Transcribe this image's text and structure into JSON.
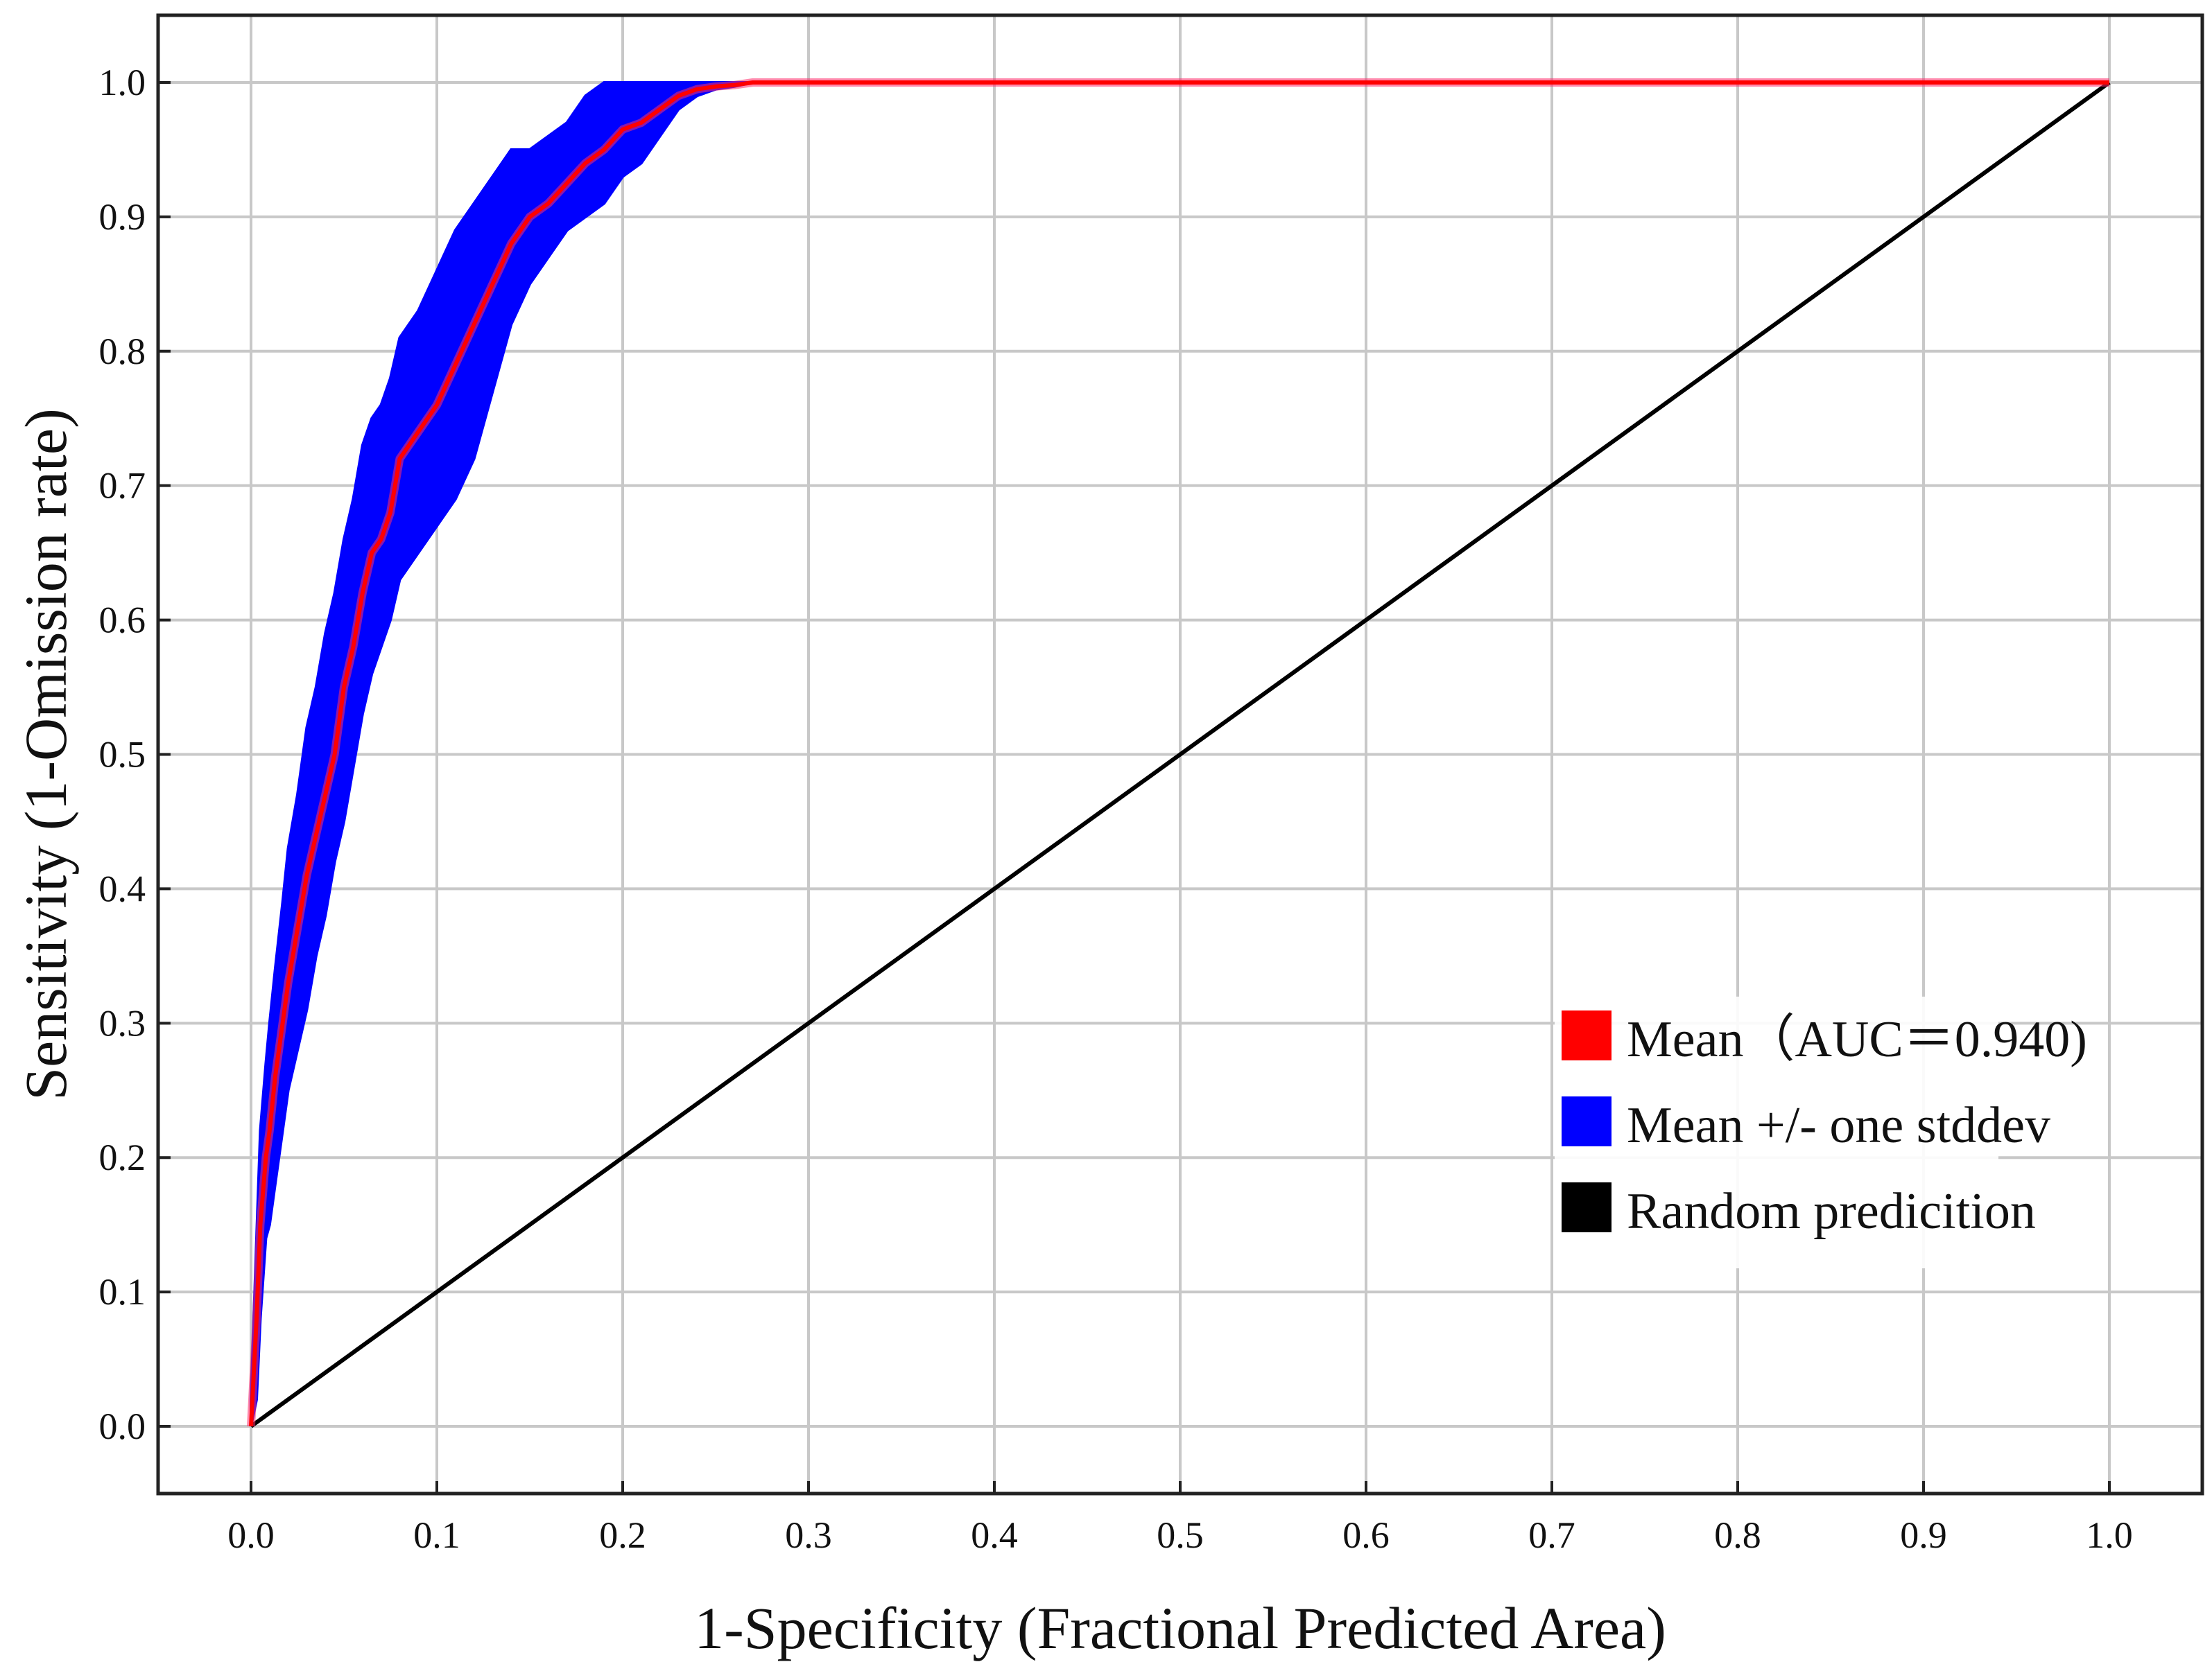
{
  "chart_data": {
    "type": "line",
    "title": "",
    "xlabel": "1-Specificity (Fractional Predicted Area)",
    "ylabel": "Sensitivity (1-Omission rate)",
    "xlim": [
      -0.05,
      1.05
    ],
    "ylim": [
      -0.05,
      1.05
    ],
    "xticks": [
      "0.0",
      "0.1",
      "0.2",
      "0.3",
      "0.4",
      "0.5",
      "0.6",
      "0.7",
      "0.8",
      "0.9",
      "1.0"
    ],
    "yticks": [
      "0.0",
      "0.1",
      "0.2",
      "0.3",
      "0.4",
      "0.5",
      "0.6",
      "0.7",
      "0.8",
      "0.9",
      "1.0"
    ],
    "grid": true,
    "legend_position": "lower-right",
    "colors": {
      "mean": "#ff0000",
      "band": "#0000ff",
      "random": "#000000",
      "grid": "#c8c8c8"
    },
    "series": [
      {
        "name": "Mean（AUC＝0.940)",
        "kind": "line",
        "x": [
          0.0,
          0.003,
          0.005,
          0.008,
          0.01,
          0.013,
          0.017,
          0.02,
          0.025,
          0.03,
          0.035,
          0.04,
          0.045,
          0.05,
          0.055,
          0.06,
          0.065,
          0.07,
          0.075,
          0.08,
          0.085,
          0.09,
          0.1,
          0.11,
          0.12,
          0.13,
          0.14,
          0.15,
          0.16,
          0.17,
          0.18,
          0.19,
          0.2,
          0.21,
          0.22,
          0.23,
          0.24,
          0.25,
          0.26,
          0.27,
          1.0
        ],
        "y": [
          0.0,
          0.08,
          0.15,
          0.2,
          0.22,
          0.26,
          0.3,
          0.33,
          0.37,
          0.41,
          0.44,
          0.47,
          0.5,
          0.55,
          0.58,
          0.62,
          0.65,
          0.66,
          0.68,
          0.72,
          0.73,
          0.74,
          0.76,
          0.79,
          0.82,
          0.85,
          0.88,
          0.9,
          0.91,
          0.925,
          0.94,
          0.95,
          0.965,
          0.97,
          0.98,
          0.99,
          0.995,
          0.997,
          0.998,
          1.0,
          1.0
        ]
      },
      {
        "name": "Mean +/- one stddev",
        "kind": "band",
        "x": [
          0.0,
          0.003,
          0.005,
          0.008,
          0.01,
          0.013,
          0.017,
          0.02,
          0.025,
          0.03,
          0.035,
          0.04,
          0.045,
          0.05,
          0.055,
          0.06,
          0.065,
          0.07,
          0.075,
          0.08,
          0.085,
          0.09,
          0.1,
          0.11,
          0.12,
          0.13,
          0.14,
          0.15,
          0.16,
          0.17,
          0.18,
          0.19,
          0.2,
          0.21,
          0.22,
          0.23,
          0.24,
          0.25,
          0.26,
          0.27,
          1.0
        ],
        "upper": [
          0.02,
          0.14,
          0.22,
          0.27,
          0.3,
          0.34,
          0.39,
          0.43,
          0.47,
          0.52,
          0.55,
          0.59,
          0.62,
          0.66,
          0.69,
          0.73,
          0.75,
          0.76,
          0.78,
          0.81,
          0.82,
          0.83,
          0.86,
          0.89,
          0.91,
          0.93,
          0.95,
          0.95,
          0.96,
          0.97,
          0.99,
          1.0,
          1.0,
          1.0,
          1.0,
          1.0,
          1.0,
          1.0,
          1.0,
          1.0,
          1.0
        ],
        "lower": [
          0.0,
          0.02,
          0.08,
          0.14,
          0.15,
          0.18,
          0.22,
          0.25,
          0.28,
          0.31,
          0.35,
          0.38,
          0.42,
          0.45,
          0.49,
          0.53,
          0.56,
          0.58,
          0.6,
          0.63,
          0.64,
          0.65,
          0.67,
          0.69,
          0.72,
          0.77,
          0.82,
          0.85,
          0.87,
          0.89,
          0.9,
          0.91,
          0.93,
          0.94,
          0.96,
          0.98,
          0.99,
          0.995,
          0.997,
          1.0,
          1.0
        ]
      },
      {
        "name": "Random predicition",
        "kind": "line",
        "x": [
          0.0,
          1.0
        ],
        "y": [
          0.0,
          1.0
        ]
      }
    ]
  }
}
